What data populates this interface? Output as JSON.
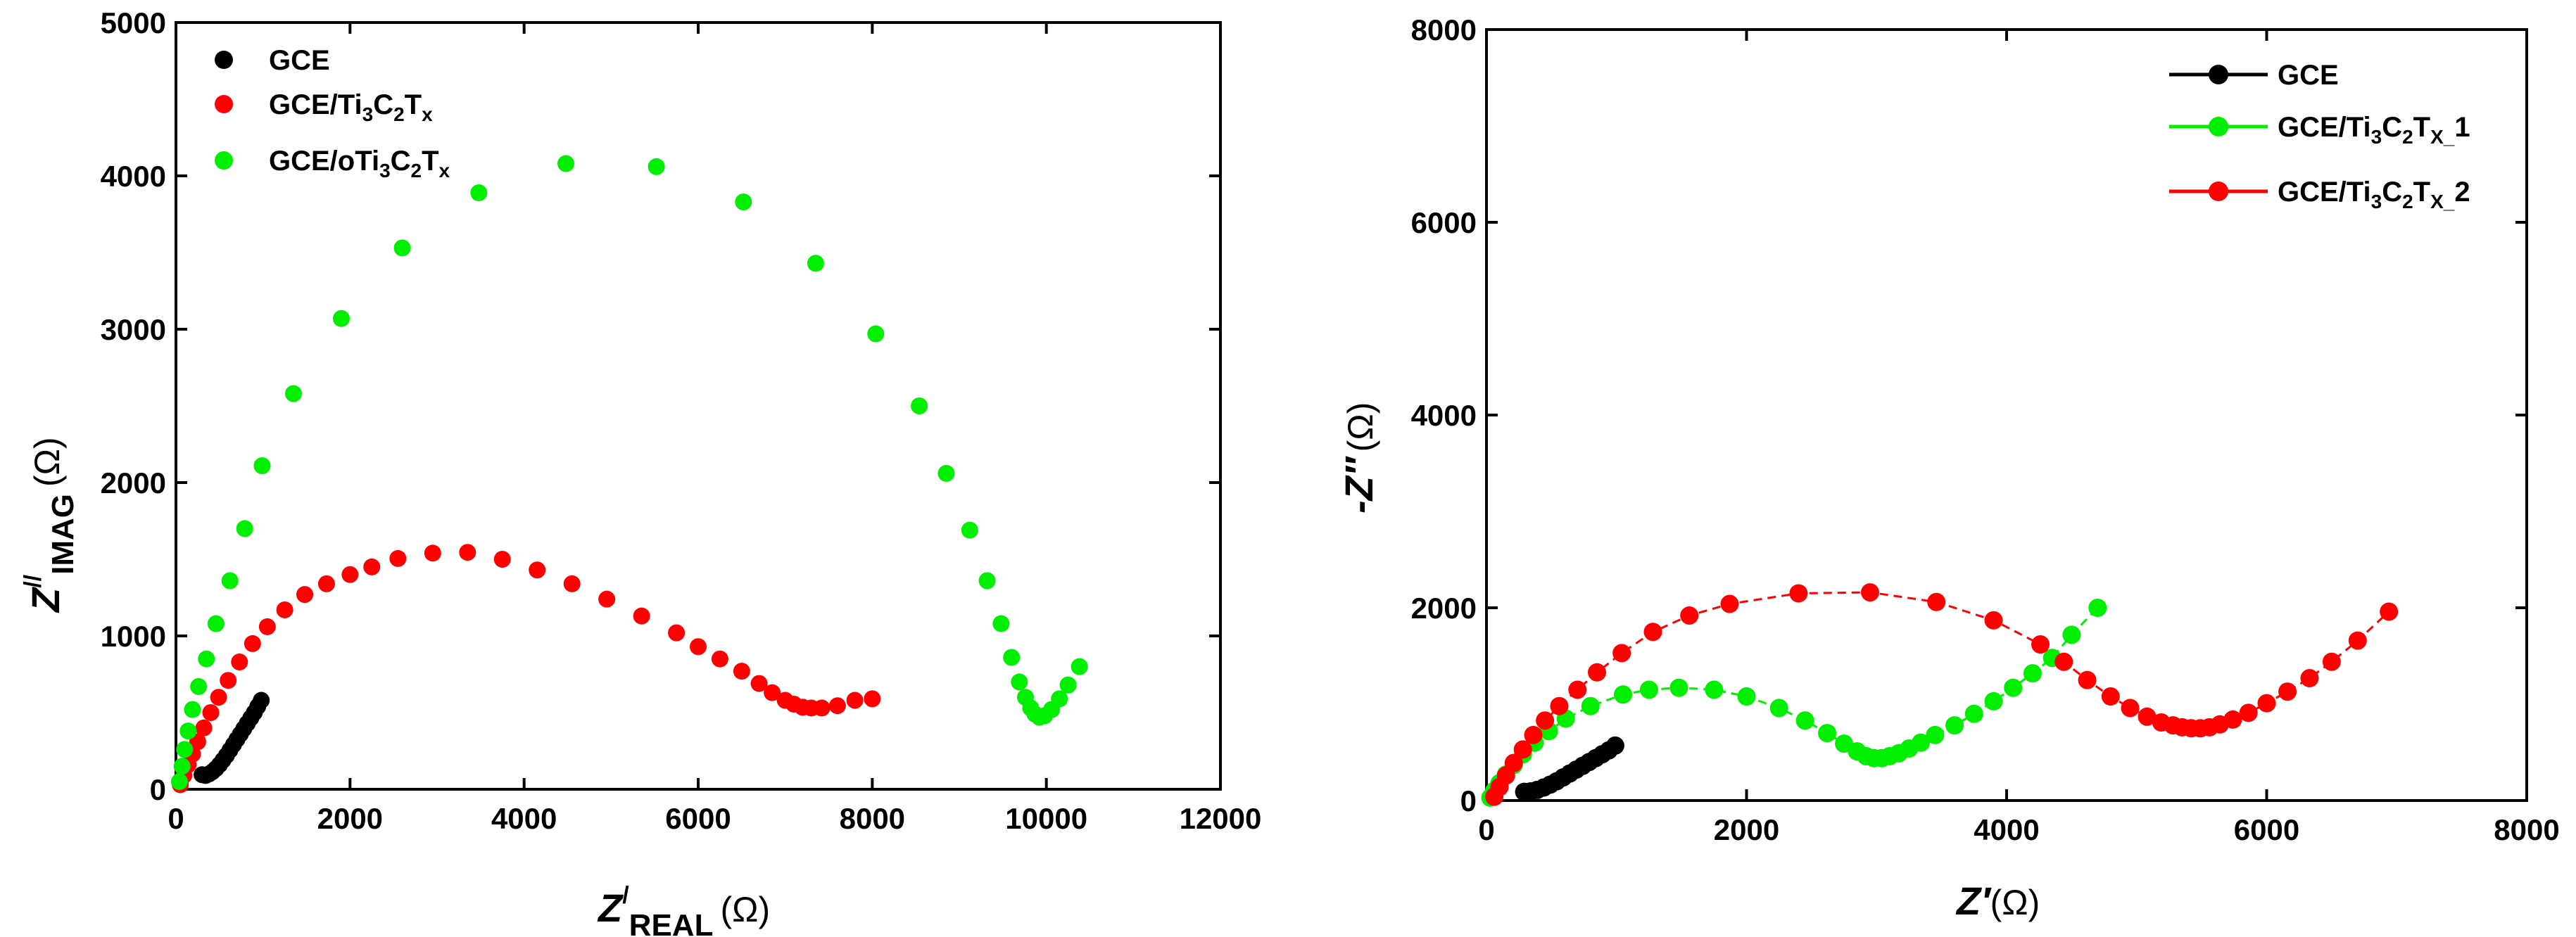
{
  "chart_data": [
    {
      "type": "scatter",
      "xlabel": {
        "main": "Z",
        "sup": "/",
        "sub": "REAL",
        "unit": "(Ω)"
      },
      "ylabel": {
        "main": "Z",
        "sup": "//",
        "sub": "IMAG",
        "unit": "(Ω)"
      },
      "xlim": [
        0,
        12000
      ],
      "ylim": [
        0,
        5000
      ],
      "xticks": [
        "0",
        "2000",
        "4000",
        "6000",
        "8000",
        "10000",
        "12000"
      ],
      "yticks": [
        "0",
        "1000",
        "2000",
        "3000",
        "4000",
        "5000"
      ],
      "legend_position": "top-left",
      "series": [
        {
          "name": "GCE",
          "legend": {
            "a": "GCE",
            "s1": "",
            "b": "",
            "s2": "",
            "c": "",
            "s3": ""
          },
          "color": "#000000",
          "line": false,
          "x": [
            300,
            340,
            380,
            420,
            460,
            500,
            540,
            580,
            620,
            660,
            700,
            740,
            780,
            820,
            860,
            900,
            940,
            980
          ],
          "y": [
            95,
            90,
            100,
            115,
            135,
            160,
            190,
            220,
            255,
            290,
            325,
            360,
            395,
            430,
            465,
            500,
            540,
            580
          ]
        },
        {
          "name": "GCE/Ti3C2Tx",
          "legend": {
            "a": "GCE/Ti",
            "s1": "3",
            "b": "C",
            "s2": "2",
            "c": "T",
            "s3": "x"
          },
          "color": "#ff0000",
          "line": false,
          "x": [
            50,
            90,
            140,
            190,
            250,
            320,
            400,
            490,
            600,
            730,
            880,
            1050,
            1250,
            1480,
            1730,
            2000,
            2250,
            2550,
            2950,
            3350,
            3750,
            4150,
            4550,
            4950,
            5350,
            5750,
            6000,
            6250,
            6500,
            6700,
            6850,
            7000,
            7100,
            7200,
            7300,
            7420,
            7600,
            7800,
            8000
          ],
          "y": [
            30,
            90,
            160,
            230,
            310,
            400,
            500,
            600,
            710,
            830,
            950,
            1060,
            1170,
            1270,
            1340,
            1400,
            1450,
            1505,
            1540,
            1545,
            1500,
            1430,
            1340,
            1240,
            1130,
            1020,
            930,
            850,
            770,
            690,
            630,
            580,
            555,
            535,
            530,
            530,
            545,
            580,
            590
          ]
        },
        {
          "name": "GCE/oTi3C2Tx",
          "legend": {
            "a": "GCE/oTi",
            "s1": "3",
            "b": "C",
            "s2": "2",
            "c": "T",
            "s3": "x"
          },
          "color": "#00ee00",
          "line": false,
          "x": [
            40,
            70,
            100,
            140,
            190,
            260,
            350,
            460,
            620,
            790,
            990,
            1350,
            1900,
            2600,
            3480,
            4480,
            5520,
            6520,
            7350,
            8040,
            8540,
            8850,
            9120,
            9320,
            9480,
            9600,
            9690,
            9760,
            9820,
            9870,
            9920,
            9980,
            10060,
            10150,
            10250,
            10380
          ],
          "y": [
            50,
            150,
            260,
            380,
            520,
            670,
            850,
            1080,
            1360,
            1700,
            2110,
            2580,
            3070,
            3530,
            3890,
            4080,
            4060,
            3830,
            3430,
            2970,
            2500,
            2060,
            1690,
            1360,
            1080,
            860,
            700,
            600,
            530,
            490,
            470,
            480,
            520,
            590,
            680,
            800
          ]
        }
      ]
    },
    {
      "type": "line",
      "xlabel": {
        "main": "Z′",
        "unit": "(Ω)"
      },
      "ylabel": {
        "main": "-Z″",
        "unit": "(Ω)"
      },
      "xlim": [
        0,
        8000
      ],
      "ylim": [
        0,
        8000
      ],
      "xticks": [
        "0",
        "2000",
        "4000",
        "6000",
        "8000"
      ],
      "yticks": [
        "0",
        "2000",
        "4000",
        "6000",
        "8000"
      ],
      "legend_position": "top-right",
      "series": [
        {
          "name": "GCE",
          "legend": {
            "a": "GCE",
            "s1": "",
            "b": "",
            "s2": "",
            "c": "",
            "s3": ""
          },
          "color": "#000000",
          "line": true,
          "x": [
            290,
            340,
            390,
            440,
            490,
            540,
            590,
            640,
            690,
            740,
            790,
            840,
            890,
            940,
            990
          ],
          "y": [
            90,
            95,
            110,
            135,
            165,
            200,
            240,
            280,
            320,
            360,
            400,
            440,
            480,
            520,
            570
          ]
        },
        {
          "name": "GCE/Ti3C2Tx_1",
          "legend": {
            "a": "GCE/Ti",
            "s1": "3",
            "b": "C",
            "s2": "2",
            "c": "T",
            "s3": "X_",
            "d": "1"
          },
          "color": "#00ee00",
          "line": true,
          "x": [
            30,
            60,
            100,
            150,
            210,
            280,
            370,
            480,
            610,
            800,
            1050,
            1250,
            1480,
            1750,
            2000,
            2250,
            2450,
            2620,
            2750,
            2850,
            2920,
            2980,
            3040,
            3100,
            3170,
            3250,
            3340,
            3450,
            3600,
            3750,
            3900,
            4050,
            4200,
            4350,
            4500,
            4700
          ],
          "y": [
            30,
            100,
            180,
            270,
            370,
            480,
            600,
            720,
            850,
            980,
            1100,
            1150,
            1170,
            1150,
            1080,
            960,
            830,
            700,
            590,
            510,
            460,
            440,
            440,
            460,
            490,
            540,
            600,
            680,
            780,
            900,
            1030,
            1170,
            1320,
            1480,
            1720,
            2000
          ]
        },
        {
          "name": "GCE/Ti3C2Tx_2",
          "legend": {
            "a": "GCE/Ti",
            "s1": "3",
            "b": "C",
            "s2": "2",
            "c": "T",
            "s3": "X_",
            "d": "2"
          },
          "color": "#ff0000",
          "line": true,
          "x": [
            60,
            100,
            150,
            210,
            280,
            360,
            450,
            560,
            700,
            850,
            1040,
            1280,
            1560,
            1870,
            2400,
            2950,
            3460,
            3900,
            4260,
            4440,
            4620,
            4800,
            4950,
            5080,
            5190,
            5280,
            5350,
            5420,
            5490,
            5560,
            5640,
            5740,
            5860,
            6000,
            6160,
            6330,
            6500,
            6700,
            6940
          ],
          "y": [
            40,
            140,
            260,
            390,
            530,
            680,
            830,
            980,
            1150,
            1330,
            1530,
            1750,
            1920,
            2040,
            2150,
            2160,
            2060,
            1870,
            1620,
            1440,
            1250,
            1080,
            960,
            870,
            810,
            780,
            760,
            750,
            750,
            760,
            790,
            840,
            910,
            1010,
            1130,
            1270,
            1440,
            1660,
            1960
          ]
        }
      ]
    }
  ]
}
